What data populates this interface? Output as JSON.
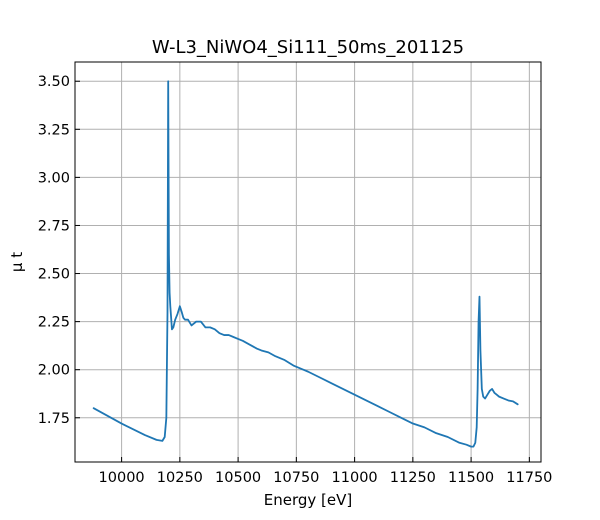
{
  "chart_data": {
    "type": "line",
    "title": "W-L3_NiWO4_Si111_50ms_201125",
    "xlabel": "Energy [eV]",
    "ylabel": "μ t",
    "xlim": [
      9800,
      11800
    ],
    "ylim": [
      1.52,
      3.6
    ],
    "xticks": [
      10000,
      10250,
      10500,
      10750,
      11000,
      11250,
      11500,
      11750
    ],
    "yticks": [
      1.75,
      2.0,
      2.25,
      2.5,
      2.75,
      3.0,
      3.25,
      3.5
    ],
    "xtick_labels": [
      "10000",
      "10250",
      "10500",
      "10750",
      "11000",
      "11250",
      "11500",
      "11750"
    ],
    "ytick_labels": [
      "1.75",
      "2.00",
      "2.25",
      "2.50",
      "2.75",
      "3.00",
      "3.25",
      "3.50"
    ],
    "grid": true,
    "series": [
      {
        "color": "#1f77b4",
        "x": [
          9880,
          10000,
          10100,
          10150,
          10175,
          10185,
          10192,
          10197,
          10200,
          10203,
          10206,
          10209,
          10212,
          10216,
          10222,
          10230,
          10240,
          10250,
          10258,
          10265,
          10272,
          10285,
          10300,
          10320,
          10340,
          10360,
          10380,
          10400,
          10420,
          10440,
          10460,
          10480,
          10500,
          10520,
          10550,
          10580,
          10600,
          10630,
          10660,
          10700,
          10740,
          10780,
          10800,
          10850,
          10900,
          10950,
          11000,
          11050,
          11100,
          11150,
          11200,
          11250,
          11300,
          11350,
          11400,
          11450,
          11480,
          11500,
          11510,
          11518,
          11524,
          11528,
          11532,
          11536,
          11540,
          11546,
          11552,
          11560,
          11570,
          11580,
          11590,
          11600,
          11610,
          11620,
          11640,
          11660,
          11680,
          11700
        ],
        "y": [
          1.8,
          1.72,
          1.66,
          1.635,
          1.63,
          1.65,
          1.75,
          2.3,
          3.5,
          2.6,
          2.4,
          2.33,
          2.28,
          2.21,
          2.22,
          2.26,
          2.29,
          2.33,
          2.3,
          2.27,
          2.26,
          2.26,
          2.23,
          2.25,
          2.25,
          2.22,
          2.22,
          2.21,
          2.19,
          2.18,
          2.18,
          2.17,
          2.16,
          2.15,
          2.13,
          2.11,
          2.1,
          2.09,
          2.07,
          2.05,
          2.02,
          2.0,
          1.99,
          1.96,
          1.93,
          1.9,
          1.87,
          1.84,
          1.81,
          1.78,
          1.75,
          1.72,
          1.7,
          1.67,
          1.65,
          1.62,
          1.61,
          1.6,
          1.6,
          1.62,
          1.7,
          1.9,
          2.25,
          2.38,
          2.1,
          1.9,
          1.86,
          1.85,
          1.87,
          1.89,
          1.9,
          1.88,
          1.87,
          1.86,
          1.85,
          1.84,
          1.835,
          1.82
        ]
      }
    ]
  }
}
